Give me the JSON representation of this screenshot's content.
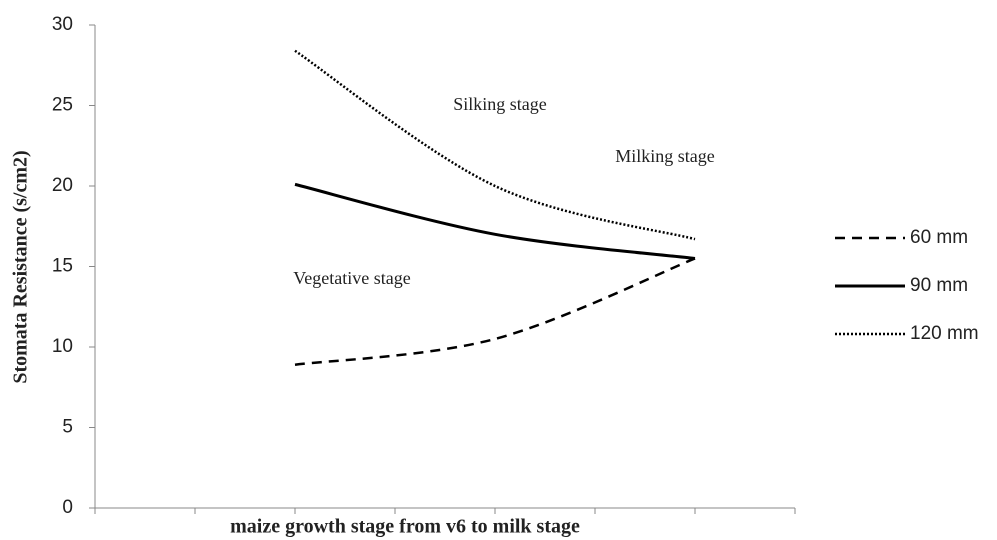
{
  "chart_data": {
    "type": "line",
    "categories": [
      null,
      null,
      null
    ],
    "series": [
      {
        "name": "60 mm",
        "color": "#000000",
        "dash": "dashed",
        "values": [
          8.9,
          10.5,
          15.5
        ]
      },
      {
        "name": "90 mm",
        "color": "#000000",
        "dash": "solid",
        "values": [
          20.1,
          17.0,
          15.5
        ]
      },
      {
        "name": "120 mm",
        "color": "#000000",
        "dash": "dotted",
        "values": [
          28.4,
          20.0,
          16.7
        ]
      }
    ],
    "ylim": [
      0,
      30
    ],
    "yticks": [
      0,
      5,
      10,
      15,
      20,
      25,
      30
    ],
    "xlabel": "maize growth stage from v6 to milk stage",
    "ylabel": "Stomata Resistance (s/cm2)",
    "annotations": [
      "Silking  stage",
      "Milking  stage",
      "Vegetative  stage"
    ],
    "grid": false,
    "legend": "right"
  }
}
